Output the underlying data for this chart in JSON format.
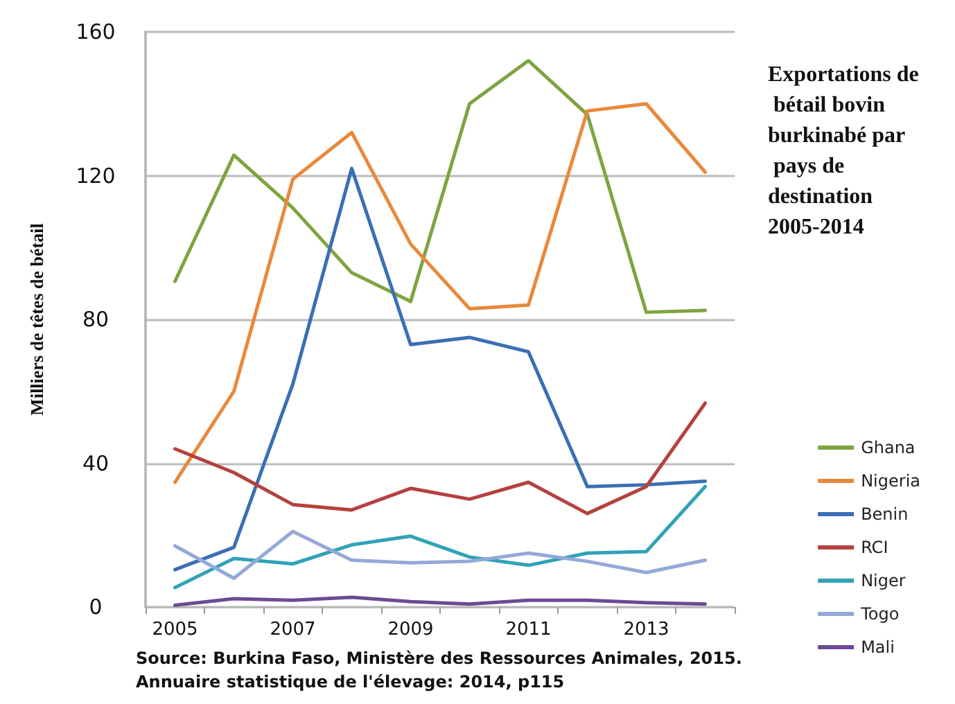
{
  "chart_data": {
    "type": "line",
    "title": "Exportations de bétail bovin burkinabé par pays de destination 2005-2014",
    "ylabel": "Milliers de têtes de bétail",
    "categories": [
      "2005",
      null,
      "2007",
      null,
      "2009",
      null,
      "2011",
      null,
      "2013",
      null
    ],
    "series": [
      {
        "name": "Ghana",
        "color": "#7ea43f",
        "values": [
          90.6,
          125.7,
          111,
          93,
          85,
          140,
          152,
          137,
          82,
          82.5
        ]
      },
      {
        "name": "Nigeria",
        "color": "#e8893a",
        "values": [
          34.7,
          60,
          119,
          132,
          101,
          83,
          84,
          138,
          140,
          121
        ]
      },
      {
        "name": "Benin",
        "color": "#3b6eb4",
        "values": [
          10.4,
          16.6,
          62,
          122,
          73,
          75,
          71,
          33.5,
          34,
          35
        ]
      },
      {
        "name": "RCI",
        "color": "#b5413e",
        "values": [
          44,
          37.4,
          28.5,
          27,
          33,
          30,
          34.7,
          26,
          33.5,
          56.7
        ]
      },
      {
        "name": "Niger",
        "color": "#31a2b8",
        "values": [
          5.4,
          13.5,
          12,
          17.3,
          19.7,
          13.9,
          11.6,
          15,
          15.4,
          33.5
        ]
      },
      {
        "name": "Togo",
        "color": "#93a9d8",
        "values": [
          17,
          8,
          21,
          13,
          12.3,
          12.7,
          15,
          12.7,
          9.6,
          13
        ]
      },
      {
        "name": "Mali",
        "color": "#6c4a94",
        "values": [
          0.5,
          2.3,
          1.9,
          2.7,
          1.5,
          0.8,
          1.9,
          1.9,
          1.2,
          0.8
        ]
      }
    ],
    "ylim": [
      0,
      160
    ],
    "yticks": [
      0,
      40,
      80,
      120,
      160
    ],
    "grid": "y",
    "legend": "right",
    "marker": "none",
    "line_style": "solid",
    "annotations": [
      "Source: Burkina Faso, Ministère des Ressources Animales, 2015.",
      "Annuaire statistique de l'élevage: 2014, p115"
    ]
  }
}
